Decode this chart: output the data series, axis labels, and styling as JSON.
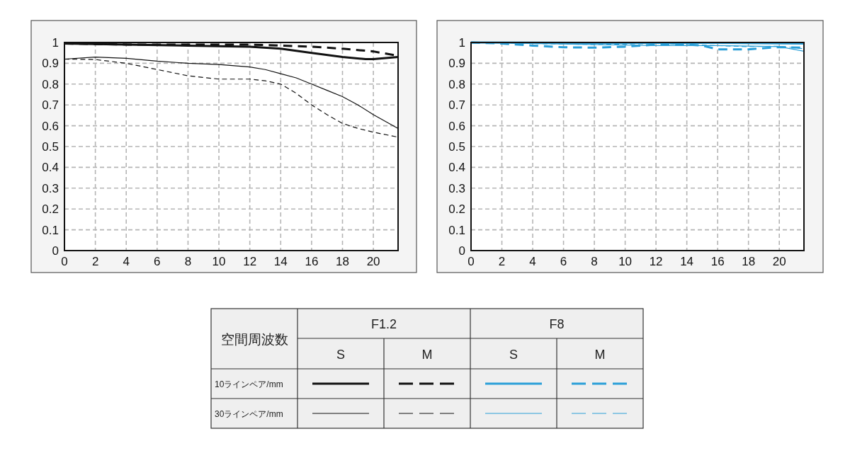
{
  "chart_data": [
    {
      "type": "line",
      "xlim": [
        0,
        21.6
      ],
      "xticks": [
        0,
        2,
        4,
        6,
        8,
        10,
        12,
        14,
        16,
        18,
        20
      ],
      "ylim": [
        0,
        1
      ],
      "yticks": [
        0,
        0.1,
        0.2,
        0.3,
        0.4,
        0.5,
        0.6,
        0.7,
        0.8,
        0.9,
        1
      ],
      "grid": true,
      "series": [
        {
          "color": "#111111",
          "line_style": "solid",
          "x": [
            0,
            4,
            8,
            12,
            14,
            16,
            18,
            19.5,
            20,
            21.6
          ],
          "values": [
            0.995,
            0.99,
            0.985,
            0.98,
            0.97,
            0.95,
            0.93,
            0.92,
            0.92,
            0.93
          ]
        },
        {
          "color": "#111111",
          "line_style": "dashed",
          "x": [
            0,
            4,
            8,
            12,
            14,
            16,
            18,
            20,
            21.6
          ],
          "values": [
            0.995,
            0.99,
            0.99,
            0.99,
            0.985,
            0.98,
            0.97,
            0.957,
            0.936
          ]
        },
        {
          "color": "#111111",
          "line_style": "solid",
          "x": [
            0,
            2,
            4,
            6,
            8,
            10,
            12,
            13,
            14,
            15,
            16,
            17,
            18,
            19,
            20,
            21.6
          ],
          "values": [
            0.92,
            0.93,
            0.924,
            0.91,
            0.9,
            0.894,
            0.882,
            0.87,
            0.85,
            0.83,
            0.8,
            0.77,
            0.74,
            0.7,
            0.653,
            0.587
          ]
        },
        {
          "color": "#111111",
          "line_style": "dashed",
          "x": [
            0,
            2,
            4,
            6,
            8,
            10,
            12,
            13,
            14,
            15,
            16,
            17,
            18,
            19,
            20,
            21.6
          ],
          "values": [
            0.92,
            0.918,
            0.9,
            0.87,
            0.84,
            0.824,
            0.824,
            0.816,
            0.8,
            0.756,
            0.7,
            0.653,
            0.611,
            0.587,
            0.569,
            0.545
          ]
        }
      ]
    },
    {
      "type": "line",
      "xlim": [
        0,
        21.6
      ],
      "xticks": [
        0,
        2,
        4,
        6,
        8,
        10,
        12,
        14,
        16,
        18,
        20
      ],
      "ylim": [
        0,
        1
      ],
      "yticks": [
        0,
        0.1,
        0.2,
        0.3,
        0.4,
        0.5,
        0.6,
        0.7,
        0.8,
        0.9,
        1
      ],
      "grid": true,
      "series": [
        {
          "color": "#2a9fd8",
          "line_style": "solid",
          "x": [
            0,
            8,
            16,
            21.6
          ],
          "values": [
            1.0,
            0.998,
            0.998,
            0.995
          ]
        },
        {
          "color": "#2a9fd8",
          "line_style": "dashed",
          "x": [
            0,
            2,
            4,
            6,
            8,
            10,
            12,
            14,
            15,
            16,
            18,
            20,
            21.6
          ],
          "values": [
            1.0,
            0.995,
            0.985,
            0.977,
            0.975,
            0.98,
            0.99,
            0.99,
            0.985,
            0.967,
            0.967,
            0.978,
            0.975
          ]
        },
        {
          "color": "#2a9fd8",
          "line_style": "solid",
          "x": [
            0,
            4,
            8,
            12,
            16,
            20,
            21.6
          ],
          "values": [
            1.0,
            0.995,
            0.99,
            0.985,
            0.985,
            0.98,
            0.958
          ]
        },
        {
          "color": "#2a9fd8",
          "line_style": "dashed",
          "x": [
            0,
            4,
            8,
            12,
            14,
            16,
            18,
            20,
            21.6
          ],
          "values": [
            1.0,
            0.995,
            0.99,
            0.995,
            0.99,
            0.985,
            0.98,
            0.982,
            0.97
          ]
        }
      ]
    },
    {
      "type": "other",
      "annotations": [
        "空間周波数",
        "F1.2",
        "F8",
        "S",
        "M",
        "S",
        "M",
        "10ラインペア/mm",
        "30ラインペア/mm"
      ]
    }
  ]
}
